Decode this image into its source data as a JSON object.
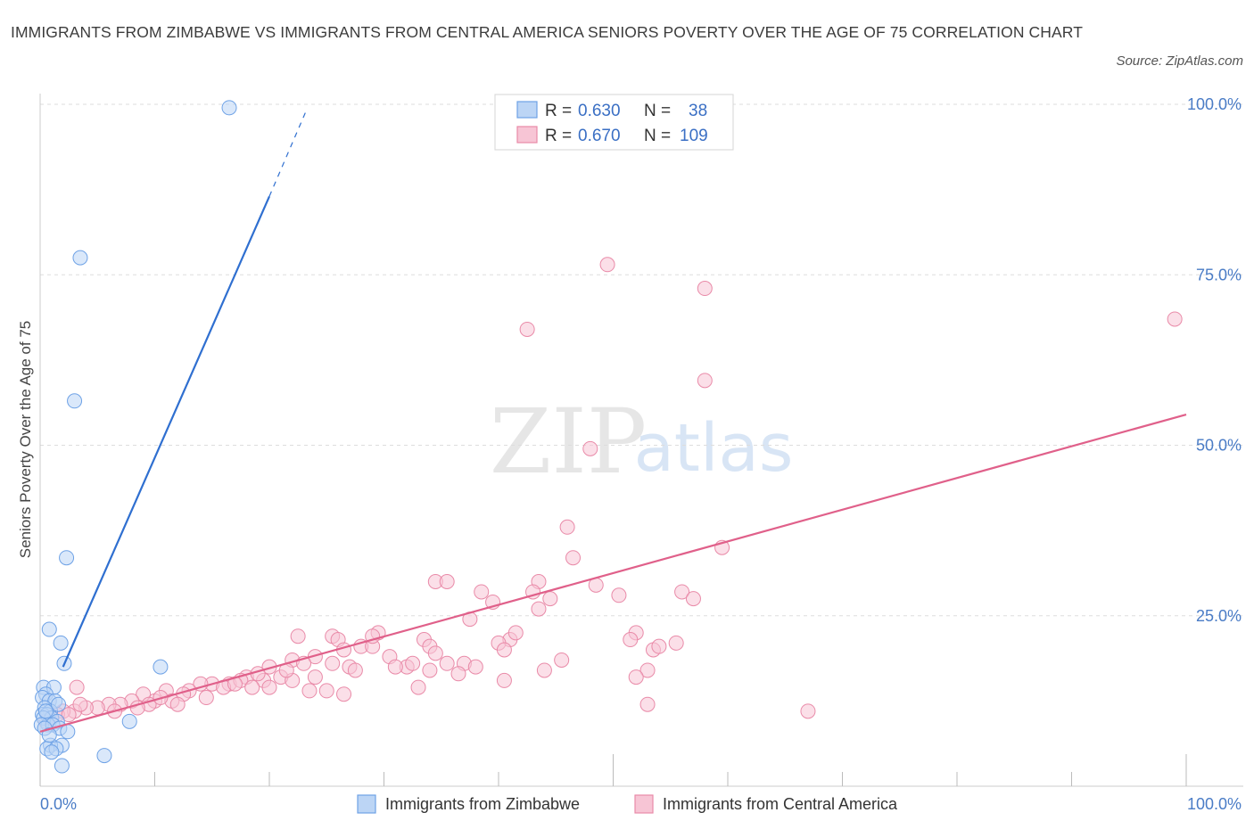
{
  "title": "IMMIGRANTS FROM ZIMBABWE VS IMMIGRANTS FROM CENTRAL AMERICA SENIORS POVERTY OVER THE AGE OF 75 CORRELATION CHART",
  "source": "Source: ZipAtlas.com",
  "watermark": {
    "zip": "ZIP",
    "atlas": "atlas"
  },
  "colors": {
    "blue": "#6ea2e6",
    "blue_fill": "#bcd5f5",
    "blue_line": "#2f6fd0",
    "pink": "#e98aa8",
    "pink_fill": "#f7c5d5",
    "pink_line": "#e0608a",
    "grid": "#dddddd",
    "axis_text": "#4a7cc6"
  },
  "legend": {
    "rows": [
      {
        "r_label": "R = ",
        "r_value": "0.630",
        "n_label": "N = ",
        "n_value": "38"
      },
      {
        "r_label": "R = ",
        "r_value": "0.670",
        "n_label": "N = ",
        "n_value": "109"
      }
    ]
  },
  "bottom_legend": [
    "Immigrants from Zimbabwe",
    "Immigrants from Central America"
  ],
  "chart_data": {
    "type": "scatter",
    "title": "IMMIGRANTS FROM ZIMBABWE VS IMMIGRANTS FROM CENTRAL AMERICA SENIORS POVERTY OVER THE AGE OF 75 CORRELATION CHART",
    "xlabel": "",
    "ylabel": "Seniors Poverty Over the Age of 75",
    "xlim": [
      0,
      100
    ],
    "ylim": [
      0,
      100
    ],
    "x_tick_labels": [
      "0.0%",
      "100.0%"
    ],
    "y_ticks": [
      25,
      50,
      75,
      100
    ],
    "y_tick_labels": [
      "25.0%",
      "50.0%",
      "75.0%",
      "100.0%"
    ],
    "grid": true,
    "legend_position": "top-center",
    "series": [
      {
        "name": "Immigrants from Zimbabwe",
        "color": "#6ea2e6",
        "r": 0.63,
        "n": 38,
        "points": [
          [
            16.5,
            99.5
          ],
          [
            3.5,
            77.5
          ],
          [
            3.0,
            56.5
          ],
          [
            2.3,
            33.5
          ],
          [
            0.8,
            23.0
          ],
          [
            1.8,
            21.0
          ],
          [
            2.1,
            18.0
          ],
          [
            10.5,
            17.5
          ],
          [
            0.3,
            14.5
          ],
          [
            1.2,
            14.5
          ],
          [
            0.5,
            13.5
          ],
          [
            0.2,
            13.0
          ],
          [
            0.8,
            12.5
          ],
          [
            1.3,
            12.5
          ],
          [
            0.4,
            11.5
          ],
          [
            0.9,
            11.0
          ],
          [
            0.2,
            10.5
          ],
          [
            0.6,
            10.5
          ],
          [
            1.0,
            10.0
          ],
          [
            0.3,
            10.0
          ],
          [
            1.5,
            9.5
          ],
          [
            0.7,
            9.0
          ],
          [
            0.1,
            9.0
          ],
          [
            1.1,
            9.0
          ],
          [
            7.8,
            9.5
          ],
          [
            1.7,
            8.5
          ],
          [
            2.4,
            8.0
          ],
          [
            0.4,
            8.5
          ],
          [
            1.9,
            6.0
          ],
          [
            0.9,
            6.0
          ],
          [
            0.6,
            5.5
          ],
          [
            1.4,
            5.5
          ],
          [
            1.0,
            5.0
          ],
          [
            5.6,
            4.5
          ],
          [
            1.9,
            3.0
          ],
          [
            0.5,
            11.0
          ],
          [
            0.8,
            7.5
          ],
          [
            1.6,
            12.0
          ]
        ],
        "trend": {
          "x": [
            2.0,
            20.0
          ],
          "y": [
            17.5,
            86.5
          ],
          "dashed_to": [
            23.2,
            99.0
          ]
        }
      },
      {
        "name": "Immigrants from Central America",
        "color": "#e98aa8",
        "r": 0.67,
        "n": 109,
        "points": [
          [
            99.0,
            68.5
          ],
          [
            49.5,
            76.5
          ],
          [
            58.0,
            73.0
          ],
          [
            42.5,
            67.0
          ],
          [
            58.0,
            59.5
          ],
          [
            48.0,
            49.5
          ],
          [
            46.0,
            38.0
          ],
          [
            46.5,
            33.5
          ],
          [
            59.5,
            35.0
          ],
          [
            34.5,
            30.0
          ],
          [
            35.5,
            30.0
          ],
          [
            43.5,
            30.0
          ],
          [
            48.5,
            29.5
          ],
          [
            38.5,
            28.5
          ],
          [
            43.0,
            28.5
          ],
          [
            56.0,
            28.5
          ],
          [
            50.5,
            28.0
          ],
          [
            44.5,
            27.5
          ],
          [
            39.5,
            27.0
          ],
          [
            43.5,
            26.0
          ],
          [
            37.5,
            24.5
          ],
          [
            41.0,
            21.5
          ],
          [
            40.0,
            21.0
          ],
          [
            40.5,
            20.0
          ],
          [
            52.0,
            22.5
          ],
          [
            51.5,
            21.5
          ],
          [
            53.5,
            20.0
          ],
          [
            54.0,
            20.5
          ],
          [
            22.5,
            22.0
          ],
          [
            25.5,
            22.0
          ],
          [
            26.0,
            21.5
          ],
          [
            29.5,
            22.5
          ],
          [
            33.5,
            21.5
          ],
          [
            34.0,
            20.5
          ],
          [
            28.0,
            20.5
          ],
          [
            29.0,
            20.5
          ],
          [
            26.5,
            20.0
          ],
          [
            24.0,
            19.0
          ],
          [
            30.5,
            19.0
          ],
          [
            35.5,
            18.0
          ],
          [
            37.0,
            18.0
          ],
          [
            25.5,
            18.0
          ],
          [
            22.0,
            18.5
          ],
          [
            20.0,
            17.5
          ],
          [
            27.0,
            17.5
          ],
          [
            32.0,
            17.5
          ],
          [
            34.0,
            17.0
          ],
          [
            44.0,
            17.0
          ],
          [
            27.5,
            17.0
          ],
          [
            31.0,
            17.5
          ],
          [
            32.5,
            18.0
          ],
          [
            23.0,
            18.0
          ],
          [
            24.0,
            16.0
          ],
          [
            21.0,
            16.0
          ],
          [
            22.0,
            15.5
          ],
          [
            36.5,
            16.5
          ],
          [
            40.5,
            15.5
          ],
          [
            18.0,
            16.0
          ],
          [
            16.5,
            15.0
          ],
          [
            17.5,
            15.5
          ],
          [
            19.5,
            15.5
          ],
          [
            15.0,
            15.0
          ],
          [
            16.0,
            14.5
          ],
          [
            14.0,
            15.0
          ],
          [
            18.5,
            14.5
          ],
          [
            20.0,
            14.5
          ],
          [
            13.0,
            14.0
          ],
          [
            11.0,
            14.0
          ],
          [
            12.5,
            13.5
          ],
          [
            14.5,
            13.0
          ],
          [
            10.0,
            12.5
          ],
          [
            11.5,
            12.5
          ],
          [
            9.0,
            13.5
          ],
          [
            9.5,
            12.0
          ],
          [
            8.0,
            12.5
          ],
          [
            7.0,
            12.0
          ],
          [
            6.0,
            12.0
          ],
          [
            5.0,
            11.5
          ],
          [
            4.0,
            11.5
          ],
          [
            3.0,
            11.0
          ],
          [
            2.0,
            11.0
          ],
          [
            1.5,
            10.5
          ],
          [
            1.0,
            10.0
          ],
          [
            0.5,
            9.5
          ],
          [
            2.5,
            10.5
          ],
          [
            3.5,
            12.0
          ],
          [
            6.5,
            11.0
          ],
          [
            8.5,
            11.5
          ],
          [
            12.0,
            12.0
          ],
          [
            10.5,
            13.0
          ],
          [
            17.0,
            15.0
          ],
          [
            19.0,
            16.5
          ],
          [
            21.5,
            17.0
          ],
          [
            23.5,
            14.0
          ],
          [
            25.0,
            14.0
          ],
          [
            33.0,
            14.5
          ],
          [
            26.5,
            13.5
          ],
          [
            53.0,
            17.0
          ],
          [
            52.0,
            16.0
          ],
          [
            57.0,
            27.5
          ],
          [
            53.0,
            12.0
          ],
          [
            55.5,
            21.0
          ],
          [
            67.0,
            11.0
          ],
          [
            45.5,
            18.5
          ],
          [
            34.5,
            19.5
          ],
          [
            38.0,
            17.5
          ],
          [
            41.5,
            22.5
          ],
          [
            29.0,
            22.0
          ],
          [
            3.2,
            14.5
          ]
        ],
        "trend": {
          "x": [
            0.0,
            100.0
          ],
          "y": [
            8.0,
            54.5
          ]
        }
      }
    ]
  }
}
